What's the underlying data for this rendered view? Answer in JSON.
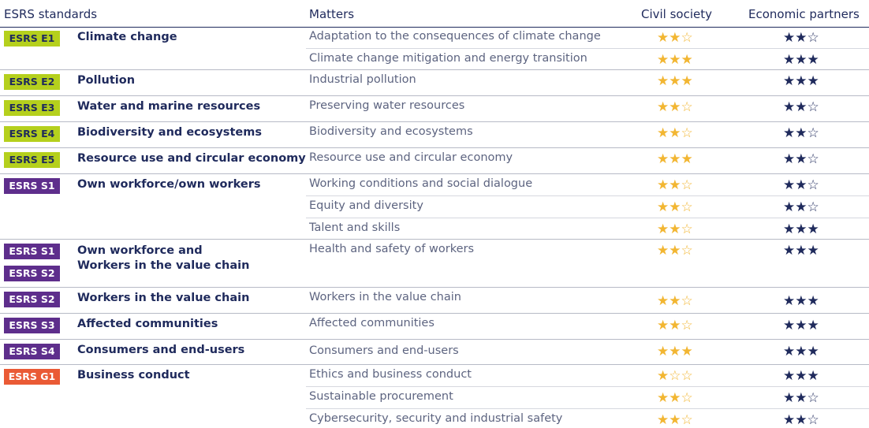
{
  "header": {
    "standards": "ESRS standards",
    "matters": "Matters",
    "civil": "Civil society",
    "economic": "Economic partners"
  },
  "groups": [
    {
      "badges": [
        {
          "label": "ESRS E1",
          "kind": "env"
        }
      ],
      "topic": "Climate change",
      "matters": [
        {
          "text": "Adaptation to the consequences of climate change",
          "civil": 2,
          "economic": 2
        },
        {
          "text": "Climate change mitigation and energy transition",
          "civil": 3,
          "economic": 3
        }
      ]
    },
    {
      "badges": [
        {
          "label": "ESRS E2",
          "kind": "env"
        }
      ],
      "topic": "Pollution",
      "matters": [
        {
          "text": "Industrial pollution",
          "civil": 3,
          "economic": 3
        }
      ]
    },
    {
      "badges": [
        {
          "label": "ESRS E3",
          "kind": "env"
        }
      ],
      "topic": "Water and marine resources",
      "matters": [
        {
          "text": "Preserving water resources",
          "civil": 2,
          "economic": 2
        }
      ]
    },
    {
      "badges": [
        {
          "label": "ESRS E4",
          "kind": "env"
        }
      ],
      "topic": "Biodiversity and ecosystems",
      "matters": [
        {
          "text": "Biodiversity and ecosystems",
          "civil": 2,
          "economic": 2
        }
      ]
    },
    {
      "badges": [
        {
          "label": "ESRS E5",
          "kind": "env"
        }
      ],
      "topic": "Resource use and circular economy",
      "matters": [
        {
          "text": "Resource use and circular economy",
          "civil": 3,
          "economic": 2
        }
      ]
    },
    {
      "badges": [
        {
          "label": "ESRS S1",
          "kind": "soc"
        }
      ],
      "topic": "Own workforce/own workers",
      "matters": [
        {
          "text": "Working conditions and social dialogue",
          "civil": 2,
          "economic": 2
        },
        {
          "text": "Equity and diversity",
          "civil": 2,
          "economic": 2
        },
        {
          "text": "Talent and skills",
          "civil": 2,
          "economic": 3
        }
      ]
    },
    {
      "badges": [
        {
          "label": "ESRS S1",
          "kind": "soc"
        },
        {
          "label": "ESRS S2",
          "kind": "soc"
        }
      ],
      "topic": "Own workforce and Workers in the value chain",
      "matters": [
        {
          "text": "Health and safety of workers",
          "civil": 2,
          "economic": 3
        }
      ]
    },
    {
      "badges": [
        {
          "label": "ESRS S2",
          "kind": "soc"
        }
      ],
      "topic": "Workers in the value chain",
      "matters": [
        {
          "text": "Workers in the value chain",
          "civil": 2,
          "economic": 3
        }
      ]
    },
    {
      "badges": [
        {
          "label": "ESRS S3",
          "kind": "soc"
        }
      ],
      "topic": "Affected communities",
      "matters": [
        {
          "text": "Affected communities",
          "civil": 2,
          "economic": 3
        }
      ]
    },
    {
      "badges": [
        {
          "label": "ESRS S4",
          "kind": "soc"
        }
      ],
      "topic": "Consumers and end-users",
      "matters": [
        {
          "text": "Consumers and end-users",
          "civil": 3,
          "economic": 3
        }
      ]
    },
    {
      "badges": [
        {
          "label": "ESRS G1",
          "kind": "gov"
        }
      ],
      "topic": "Business conduct",
      "matters": [
        {
          "text": "Ethics and business conduct",
          "civil": 1,
          "economic": 3
        },
        {
          "text": "Sustainable procurement",
          "civil": 2,
          "economic": 2
        },
        {
          "text": "Cybersecurity, security and industrial safety",
          "civil": 2,
          "economic": 2
        }
      ]
    }
  ],
  "colors": {
    "env": "#b5d01d",
    "soc": "#5e2e8c",
    "gov": "#ea5a35",
    "civil_star": "#f2b632",
    "economic_star": "#1f2a5c"
  }
}
